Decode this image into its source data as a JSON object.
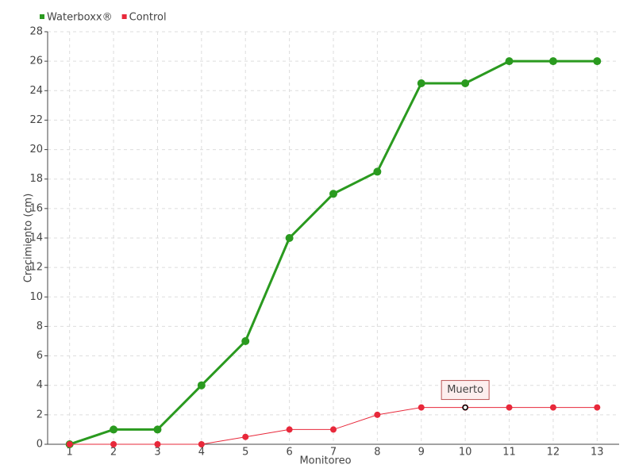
{
  "chart_data": {
    "type": "line",
    "x_label": "Monitoreo",
    "y_label": "Crecimiento (cm)",
    "categories": [
      "1",
      "2",
      "3",
      "4",
      "5",
      "6",
      "7",
      "8",
      "9",
      "10",
      "11",
      "12",
      "13"
    ],
    "series": [
      {
        "name": "Waterboxx®",
        "color": "#2a9a1f",
        "values": [
          0,
          1,
          1,
          4,
          7,
          14,
          17,
          18.5,
          24.5,
          24.5,
          26,
          26,
          26
        ]
      },
      {
        "name": "Control",
        "color": "#e8283a",
        "values": [
          0,
          0,
          0,
          0,
          0.5,
          1,
          1,
          2,
          2.5,
          2.5,
          2.5,
          2.5,
          2.5
        ]
      }
    ],
    "annotations": [
      {
        "text": "Muerto",
        "x": "10",
        "y": 2.5
      }
    ],
    "ylim": [
      0,
      28
    ],
    "yticks": [
      0,
      2,
      4,
      6,
      8,
      10,
      12,
      14,
      16,
      18,
      20,
      22,
      24,
      26,
      28
    ],
    "grid": true,
    "legend": "top-left"
  }
}
